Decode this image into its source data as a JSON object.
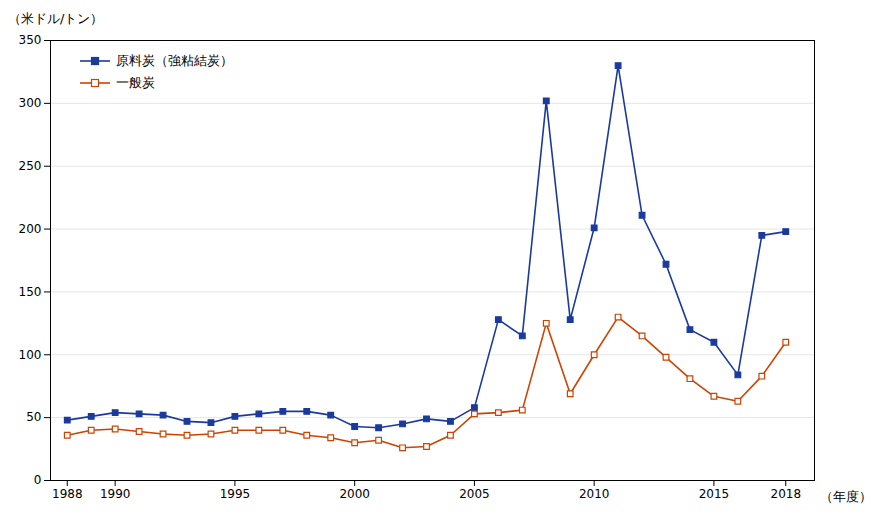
{
  "chart_data": {
    "type": "line",
    "x": [
      1988,
      1989,
      1990,
      1991,
      1992,
      1993,
      1994,
      1995,
      1996,
      1997,
      1998,
      1999,
      2000,
      2001,
      2002,
      2003,
      2004,
      2005,
      2006,
      2007,
      2008,
      2009,
      2010,
      2011,
      2012,
      2013,
      2014,
      2015,
      2016,
      2017,
      2018
    ],
    "series": [
      {
        "name": "原料炭（強粘結炭）",
        "color": "#1a3a9e",
        "marker": "square",
        "values": [
          48,
          51,
          54,
          53,
          52,
          47,
          46,
          51,
          53,
          55,
          55,
          52,
          43,
          42,
          45,
          49,
          47,
          58,
          128,
          115,
          302,
          128,
          201,
          330,
          211,
          172,
          120,
          110,
          84,
          195,
          198
        ]
      },
      {
        "name": "一般炭",
        "color": "#cc4400",
        "marker": "open_square",
        "values": [
          36,
          40,
          41,
          39,
          37,
          36,
          37,
          40,
          40,
          40,
          36,
          34,
          30,
          32,
          26,
          27,
          36,
          53,
          54,
          56,
          125,
          69,
          100,
          130,
          115,
          98,
          81,
          67,
          63,
          83,
          110
        ]
      }
    ],
    "xlabel": "（年度）",
    "ylabel": "（米ドル/トン）",
    "xlim": [
      1987.3,
      2019.2
    ],
    "xticks": [
      1988,
      1990,
      1995,
      2000,
      2005,
      2010,
      2015,
      2018
    ],
    "ylim": [
      0,
      350
    ],
    "yticks": [
      0,
      50,
      100,
      150,
      200,
      250,
      300,
      350
    ],
    "grid": true,
    "legend": "upper left"
  }
}
